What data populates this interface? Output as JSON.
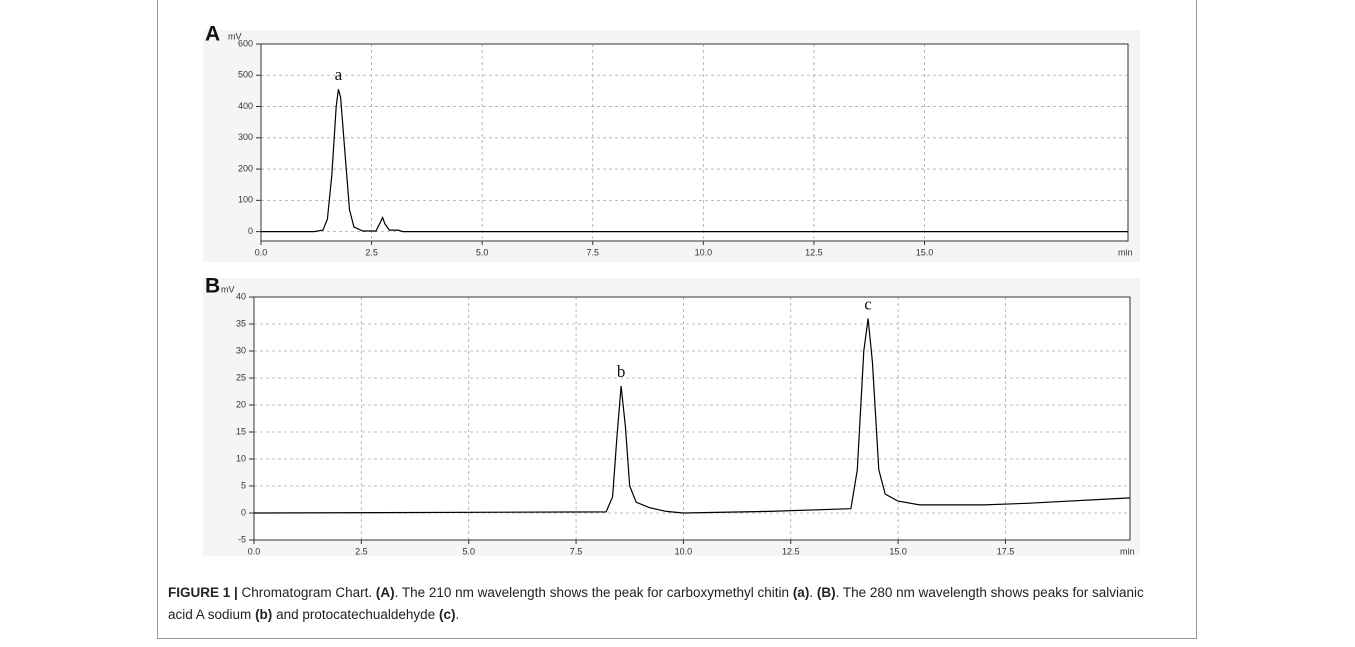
{
  "chart_data": [
    {
      "type": "line",
      "label": "A",
      "y_unit": "mV",
      "x_label": "min",
      "x": [
        0,
        1.2,
        1.4,
        1.5,
        1.6,
        1.7,
        1.75,
        1.8,
        1.9,
        2.0,
        2.1,
        2.3,
        2.6,
        2.7,
        2.75,
        2.8,
        2.9,
        3.1,
        3.2,
        19.6
      ],
      "series": [
        {
          "color": "#000000",
          "values": [
            0,
            0,
            5,
            40,
            180,
            400,
            455,
            430,
            250,
            70,
            15,
            2,
            2,
            30,
            45,
            25,
            5,
            5,
            0,
            0
          ]
        }
      ],
      "annotations": [
        {
          "text": "a",
          "x": 1.75,
          "y": 455
        }
      ],
      "xlim": [
        0,
        19.6
      ],
      "ylim": [
        -30,
        600
      ],
      "xticks": [
        {
          "value": 0,
          "label": "0.0"
        },
        2.5,
        {
          "value": 5,
          "label": "5.0"
        },
        7.5,
        {
          "value": 10,
          "label": "10.0"
        },
        12.5,
        {
          "value": 15,
          "label": "15.0"
        }
      ],
      "yticks": [
        0,
        100,
        200,
        300,
        400,
        500,
        600
      ],
      "grid": true
    },
    {
      "type": "line",
      "label": "B",
      "y_unit": "mV",
      "x_label": "min",
      "x": [
        0,
        8.2,
        8.35,
        8.45,
        8.55,
        8.65,
        8.75,
        8.9,
        9.2,
        9.6,
        10,
        12,
        13.9,
        14.05,
        14.2,
        14.3,
        14.4,
        14.55,
        14.7,
        15,
        15.5,
        17,
        18,
        20.4
      ],
      "series": [
        {
          "color": "#000000",
          "values": [
            0,
            0.2,
            3,
            14,
            23.5,
            16,
            5,
            2,
            1,
            0.3,
            0,
            0.3,
            0.8,
            8,
            30,
            36,
            28,
            8,
            3.5,
            2.2,
            1.5,
            1.5,
            1.8,
            2.8
          ]
        }
      ],
      "annotations": [
        {
          "text": "b",
          "x": 8.55,
          "y": 23.5
        },
        {
          "text": "c",
          "x": 14.3,
          "y": 36
        }
      ],
      "xlim": [
        0,
        20.4
      ],
      "ylim": [
        -5,
        40
      ],
      "xticks": [
        {
          "value": 0,
          "label": "0.0"
        },
        2.5,
        {
          "value": 5,
          "label": "5.0"
        },
        7.5,
        {
          "value": 10,
          "label": "10.0"
        },
        12.5,
        {
          "value": 15,
          "label": "15.0"
        },
        17.5
      ],
      "yticks": [
        -5,
        0,
        5,
        10,
        15,
        20,
        25,
        30,
        35,
        40
      ],
      "grid": true
    }
  ],
  "caption": [
    {
      "text": "FIGURE 1 |",
      "bold": true
    },
    {
      "text": " Chromatogram Chart. ",
      "bold": false
    },
    {
      "text": "(A)",
      "bold": true
    },
    {
      "text": ". The 210 nm wavelength shows the peak for carboxymethyl chitin ",
      "bold": false
    },
    {
      "text": "(a)",
      "bold": true
    },
    {
      "text": ". ",
      "bold": false
    },
    {
      "text": "(B)",
      "bold": true
    },
    {
      "text": ". The 280 nm wavelength shows peaks for salvianic acid A sodium ",
      "bold": false
    },
    {
      "text": "(b)",
      "bold": true
    },
    {
      "text": " and protocatechualdehyde ",
      "bold": false
    },
    {
      "text": "(c)",
      "bold": true
    },
    {
      "text": ".",
      "bold": false
    }
  ]
}
